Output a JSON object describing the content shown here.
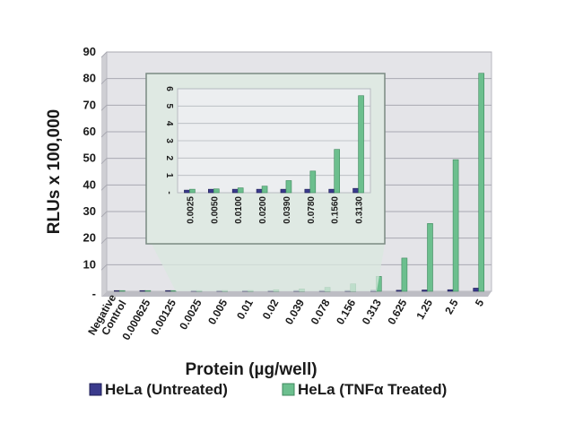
{
  "chart_data": [
    {
      "type": "bar",
      "xlabel": "Protein (µg/well)",
      "ylabel": "RLUs x 100,000",
      "ylim": [
        0,
        90
      ],
      "yticks": [
        "90",
        "80",
        "70",
        "60",
        "50",
        "40",
        "30",
        "20",
        "10",
        "-"
      ],
      "ytick_values": [
        90,
        80,
        70,
        60,
        50,
        40,
        30,
        20,
        10,
        0
      ],
      "categories": [
        "Negative Control",
        "0.000625",
        "0.00125",
        "0.0025",
        "0.005",
        "0.01",
        "0.02",
        "0.039",
        "0.078",
        "0.156",
        "0.313",
        "0.625",
        "1.25",
        "2.5",
        "5"
      ],
      "series": [
        {
          "name": "HeLa (Untreated)",
          "color": "#3a3a8c",
          "values": [
            0.2,
            0.2,
            0.2,
            0.2,
            0.2,
            0.2,
            0.2,
            0.3,
            0.3,
            0.3,
            0.4,
            0.4,
            0.5,
            0.6,
            1.2
          ]
        },
        {
          "name": "HeLa (TNFα Treated)",
          "color": "#6cbf8e",
          "values": [
            0.2,
            0.2,
            0.2,
            0.2,
            0.3,
            0.3,
            0.6,
            0.9,
            1.5,
            2.8,
            5.6,
            12.5,
            25.5,
            49.5,
            82
          ]
        }
      ],
      "grid": true,
      "legend": "bottom"
    },
    {
      "type": "bar",
      "inset": true,
      "ylim": [
        0,
        6
      ],
      "yticks": [
        "6",
        "5",
        "4",
        "3",
        "2",
        "1",
        "-"
      ],
      "ytick_values": [
        6,
        5,
        4,
        3,
        2,
        1,
        0
      ],
      "categories": [
        "0.0025",
        "0.0050",
        "0.0100",
        "0.0200",
        "0.0390",
        "0.0780",
        "0.1560",
        "0.3130"
      ],
      "series": [
        {
          "name": "HeLa (Untreated)",
          "color": "#3a3a8c",
          "values": [
            0.15,
            0.2,
            0.2,
            0.2,
            0.2,
            0.2,
            0.2,
            0.25
          ]
        },
        {
          "name": "HeLa (TNFα Treated)",
          "color": "#6cbf8e",
          "values": [
            0.2,
            0.22,
            0.28,
            0.38,
            0.7,
            1.25,
            2.5,
            5.6
          ]
        }
      ],
      "grid": true
    }
  ]
}
